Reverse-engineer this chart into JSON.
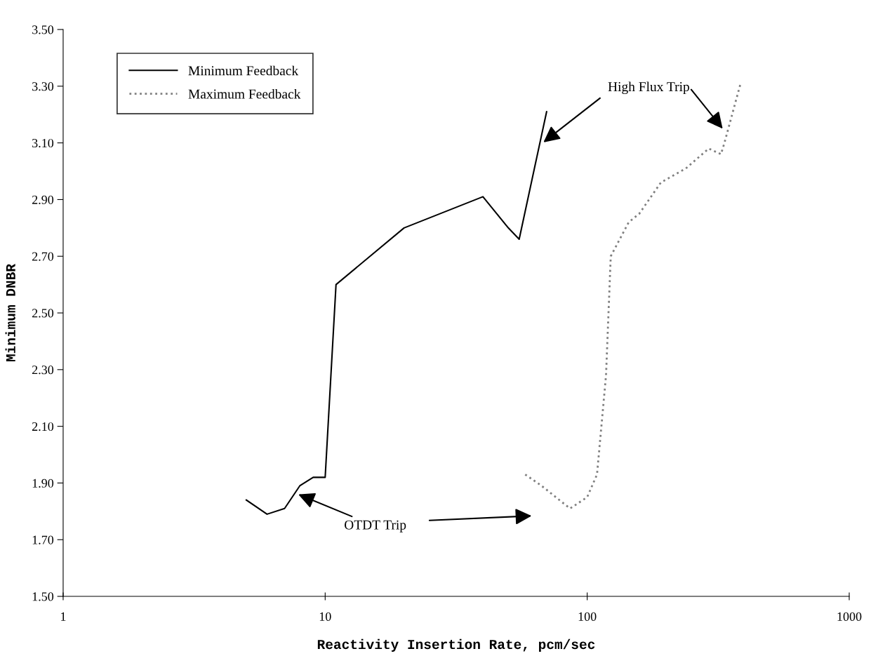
{
  "chart_data": {
    "type": "line",
    "xlabel": "Reactivity Insertion Rate, pcm/sec",
    "ylabel": "Minimum DNBR",
    "log": "x",
    "xlim": [
      1,
      1000
    ],
    "xticks": [
      1,
      10,
      100,
      1000
    ],
    "ylim": [
      1.5,
      3.5
    ],
    "yticks": [
      {
        "value": 1.5,
        "label": "1.50"
      },
      {
        "value": 1.7,
        "label": "1.70"
      },
      {
        "value": 1.9,
        "label": "1.90"
      },
      {
        "value": 2.1,
        "label": "2.10"
      },
      {
        "value": 2.3,
        "label": "2.30"
      },
      {
        "value": 2.5,
        "label": "2.50"
      },
      {
        "value": 2.7,
        "label": "2.70"
      },
      {
        "value": 2.9,
        "label": "2.90"
      },
      {
        "value": 3.1,
        "label": "3.10"
      },
      {
        "value": 3.3,
        "label": "3.30"
      },
      {
        "value": 3.5,
        "label": "3.50"
      }
    ],
    "grid": false,
    "legend": "top left",
    "marker": "none",
    "series": [
      {
        "name": "Minimum Feedback",
        "color": "#000000",
        "line_style": "solid",
        "x": [
          5,
          6,
          7,
          8,
          9,
          10,
          11,
          20,
          40,
          50,
          55,
          70
        ],
        "values": [
          1.84,
          1.79,
          1.81,
          1.89,
          1.92,
          1.92,
          2.6,
          2.8,
          2.91,
          2.8,
          2.76,
          3.21
        ]
      },
      {
        "name": "Maximum Feedback",
        "color": "#808080",
        "line_style": "dotted",
        "x": [
          58,
          67,
          86,
          100,
          109,
          118,
          123,
          144,
          158,
          191,
          238,
          291,
          324,
          334,
          385
        ],
        "values": [
          1.93,
          1.89,
          1.81,
          1.85,
          1.93,
          2.28,
          2.7,
          2.82,
          2.85,
          2.96,
          3.01,
          3.08,
          3.06,
          3.1,
          3.31
        ]
      }
    ],
    "annotations": [
      "High Flux Trip",
      {
        "text": "OTDT Trip",
        "x": 7.9,
        "y": 1.86
      }
    ]
  }
}
